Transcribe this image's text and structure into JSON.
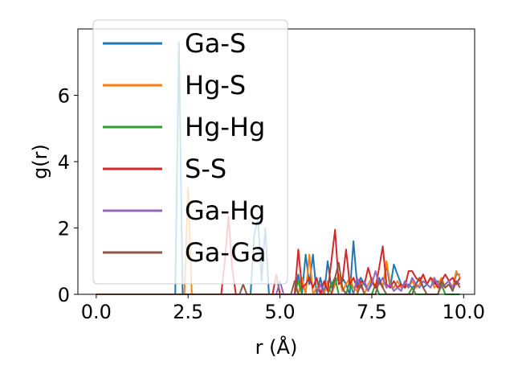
{
  "chart_data": {
    "type": "line",
    "title": "",
    "xlabel": "r (Å)",
    "ylabel": "g(r)",
    "xlim": [
      -0.5,
      10.3
    ],
    "ylim": [
      0,
      8.0
    ],
    "xticks": [
      0.0,
      2.5,
      5.0,
      7.5,
      10.0
    ],
    "xtick_labels": [
      "0.0",
      "2.5",
      "5.0",
      "7.5",
      "10.0"
    ],
    "yticks": [
      0,
      2,
      4,
      6
    ],
    "ytick_labels": [
      "0",
      "2",
      "4",
      "6"
    ],
    "grid": false,
    "legend_position": "upper-left",
    "series": [
      {
        "name": "Ga-S",
        "color": "#1f77b4",
        "points": [
          [
            0,
            0
          ],
          [
            2.15,
            0
          ],
          [
            2.25,
            7.6
          ],
          [
            2.35,
            0
          ],
          [
            4.2,
            0
          ],
          [
            4.3,
            1.8
          ],
          [
            4.4,
            2.3
          ],
          [
            4.5,
            0.4
          ],
          [
            4.6,
            2.0
          ],
          [
            4.7,
            0
          ],
          [
            5.4,
            0
          ],
          [
            5.5,
            0.6
          ],
          [
            5.6,
            0
          ],
          [
            5.7,
            1.2
          ],
          [
            5.8,
            0.3
          ],
          [
            5.9,
            1.2
          ],
          [
            6.0,
            0
          ],
          [
            6.1,
            0.5
          ],
          [
            6.2,
            0
          ],
          [
            6.3,
            1.0
          ],
          [
            6.4,
            0.2
          ],
          [
            6.5,
            0.5
          ],
          [
            6.6,
            0.4
          ],
          [
            6.7,
            0.5
          ],
          [
            6.8,
            0.3
          ],
          [
            6.9,
            0
          ],
          [
            7.0,
            1.6
          ],
          [
            7.1,
            0.3
          ],
          [
            7.2,
            0.5
          ],
          [
            7.3,
            0.3
          ],
          [
            7.4,
            0.1
          ],
          [
            7.5,
            0.4
          ],
          [
            7.6,
            0.2
          ],
          [
            7.7,
            0.5
          ],
          [
            7.8,
            0.2
          ],
          [
            7.9,
            0.9
          ],
          [
            8.0,
            0.2
          ],
          [
            8.1,
            0.9
          ],
          [
            8.2,
            0.6
          ],
          [
            8.3,
            0.3
          ],
          [
            8.4,
            0.2
          ],
          [
            8.5,
            0.3
          ],
          [
            8.6,
            0.2
          ],
          [
            8.7,
            0.3
          ],
          [
            8.8,
            0.5
          ],
          [
            8.9,
            0.2
          ],
          [
            9.0,
            0.3
          ],
          [
            9.1,
            0.5
          ],
          [
            9.2,
            0.3
          ],
          [
            9.3,
            0.4
          ],
          [
            9.4,
            0.2
          ],
          [
            9.5,
            0.3
          ],
          [
            9.6,
            0.4
          ],
          [
            9.7,
            0.2
          ],
          [
            9.8,
            0.6
          ],
          [
            9.9,
            0.6
          ]
        ]
      },
      {
        "name": "Hg-S",
        "color": "#ff7f0e",
        "points": [
          [
            0,
            0
          ],
          [
            2.4,
            0
          ],
          [
            2.5,
            3.2
          ],
          [
            2.6,
            0
          ],
          [
            5.5,
            0
          ],
          [
            5.6,
            0.5
          ],
          [
            5.7,
            0
          ],
          [
            5.8,
            1.2
          ],
          [
            5.9,
            0
          ],
          [
            6.0,
            0.2
          ],
          [
            6.2,
            0
          ],
          [
            6.3,
            0.4
          ],
          [
            6.4,
            0
          ],
          [
            6.6,
            0.6
          ],
          [
            6.7,
            0.1
          ],
          [
            6.8,
            0.3
          ],
          [
            6.9,
            0.5
          ],
          [
            7.0,
            0.2
          ],
          [
            7.1,
            0.1
          ],
          [
            7.2,
            0.4
          ],
          [
            7.3,
            0
          ],
          [
            7.4,
            0.3
          ],
          [
            7.5,
            0.5
          ],
          [
            7.6,
            0.2
          ],
          [
            7.7,
            0.4
          ],
          [
            7.8,
            0.2
          ],
          [
            7.9,
            1.0
          ],
          [
            8.0,
            0.3
          ],
          [
            8.1,
            0.2
          ],
          [
            8.2,
            0.4
          ],
          [
            8.3,
            0.2
          ],
          [
            8.4,
            0.3
          ],
          [
            8.5,
            0.2
          ],
          [
            8.6,
            0.4
          ],
          [
            8.7,
            0.2
          ],
          [
            8.8,
            0.3
          ],
          [
            8.9,
            0.6
          ],
          [
            9.0,
            0.3
          ],
          [
            9.1,
            0.5
          ],
          [
            9.2,
            0.2
          ],
          [
            9.3,
            0.3
          ],
          [
            9.4,
            0.5
          ],
          [
            9.5,
            0.2
          ],
          [
            9.6,
            0.3
          ],
          [
            9.7,
            0.2
          ],
          [
            9.8,
            0.7
          ],
          [
            9.9,
            0.5
          ]
        ]
      },
      {
        "name": "Hg-Hg",
        "color": "#2ca02c",
        "points": [
          [
            0,
            0
          ],
          [
            5.4,
            0
          ],
          [
            5.5,
            0.4
          ],
          [
            5.6,
            0
          ],
          [
            6.3,
            0
          ],
          [
            6.4,
            0.3
          ],
          [
            6.5,
            0.5
          ],
          [
            6.6,
            0
          ],
          [
            6.8,
            0
          ],
          [
            6.9,
            0.4
          ],
          [
            7.0,
            0
          ],
          [
            7.5,
            0
          ],
          [
            7.6,
            0.3
          ],
          [
            7.7,
            0
          ],
          [
            8.5,
            0
          ],
          [
            8.6,
            0.2
          ],
          [
            8.7,
            0
          ],
          [
            9.3,
            0
          ],
          [
            9.4,
            0.3
          ],
          [
            9.5,
            0
          ],
          [
            9.9,
            0
          ]
        ]
      },
      {
        "name": "S-S",
        "color": "#d62728",
        "points": [
          [
            0,
            0
          ],
          [
            3.4,
            0
          ],
          [
            3.5,
            1.0
          ],
          [
            3.6,
            2.35
          ],
          [
            3.7,
            0.8
          ],
          [
            3.8,
            0
          ],
          [
            4.8,
            0
          ],
          [
            4.9,
            0.6
          ],
          [
            5.0,
            0
          ],
          [
            5.4,
            0
          ],
          [
            5.5,
            1.35
          ],
          [
            5.6,
            0.2
          ],
          [
            5.7,
            0.3
          ],
          [
            5.8,
            0.5
          ],
          [
            5.9,
            0.2
          ],
          [
            6.0,
            0.5
          ],
          [
            6.1,
            0
          ],
          [
            6.2,
            0.4
          ],
          [
            6.3,
            0.1
          ],
          [
            6.4,
            1.0
          ],
          [
            6.5,
            1.95
          ],
          [
            6.6,
            0.3
          ],
          [
            6.7,
            0.4
          ],
          [
            6.8,
            1.35
          ],
          [
            6.9,
            0.3
          ],
          [
            7.0,
            0.5
          ],
          [
            7.1,
            0.2
          ],
          [
            7.2,
            0.4
          ],
          [
            7.3,
            0.3
          ],
          [
            7.4,
            0.8
          ],
          [
            7.5,
            0.4
          ],
          [
            7.6,
            0.2
          ],
          [
            7.7,
            0.8
          ],
          [
            7.8,
            1.45
          ],
          [
            7.9,
            0.3
          ],
          [
            8.0,
            0.2
          ],
          [
            8.1,
            0.4
          ],
          [
            8.2,
            0.2
          ],
          [
            8.3,
            0.3
          ],
          [
            8.4,
            0.2
          ],
          [
            8.5,
            0.7
          ],
          [
            8.6,
            0.7
          ],
          [
            8.7,
            0.5
          ],
          [
            8.8,
            0.4
          ],
          [
            8.9,
            0.6
          ],
          [
            9.0,
            0.3
          ],
          [
            9.1,
            0.5
          ],
          [
            9.2,
            0.4
          ],
          [
            9.3,
            0.2
          ],
          [
            9.4,
            0.4
          ],
          [
            9.5,
            0.6
          ],
          [
            9.6,
            0.4
          ],
          [
            9.7,
            0.5
          ],
          [
            9.8,
            0.3
          ],
          [
            9.9,
            0.5
          ]
        ]
      },
      {
        "name": "Ga-Hg",
        "color": "#9467bd",
        "points": [
          [
            0,
            0
          ],
          [
            4.9,
            0
          ],
          [
            5.0,
            0.4
          ],
          [
            5.1,
            0
          ],
          [
            6.0,
            0
          ],
          [
            6.1,
            0.3
          ],
          [
            6.2,
            0
          ],
          [
            7.0,
            0
          ],
          [
            7.1,
            0.5
          ],
          [
            7.2,
            0.2
          ],
          [
            7.3,
            0.4
          ],
          [
            7.4,
            0.1
          ],
          [
            7.5,
            0.3
          ],
          [
            7.6,
            0.7
          ],
          [
            7.7,
            0.3
          ],
          [
            7.8,
            0.5
          ],
          [
            7.9,
            0.2
          ],
          [
            8.0,
            0.3
          ],
          [
            8.1,
            0.1
          ],
          [
            8.2,
            0.2
          ],
          [
            8.3,
            0.1
          ],
          [
            8.4,
            0.4
          ],
          [
            8.5,
            0.2
          ],
          [
            8.6,
            0.5
          ],
          [
            8.7,
            0.3
          ],
          [
            8.8,
            0.2
          ],
          [
            8.9,
            0.4
          ],
          [
            9.0,
            0.3
          ],
          [
            9.1,
            0.2
          ],
          [
            9.2,
            0.5
          ],
          [
            9.3,
            0.3
          ],
          [
            9.4,
            0.2
          ],
          [
            9.5,
            0.3
          ],
          [
            9.6,
            0.4
          ],
          [
            9.7,
            0.2
          ],
          [
            9.8,
            0.4
          ],
          [
            9.9,
            0.3
          ]
        ]
      },
      {
        "name": "Ga-Ga",
        "color": "#8c564b",
        "points": [
          [
            0,
            0
          ],
          [
            3.9,
            0
          ],
          [
            4.0,
            0.3
          ],
          [
            4.1,
            0
          ],
          [
            5.3,
            0
          ],
          [
            5.4,
            0.4
          ],
          [
            5.5,
            0
          ],
          [
            6.4,
            0
          ],
          [
            6.5,
            0.5
          ],
          [
            6.6,
            0.95
          ],
          [
            6.7,
            0.2
          ],
          [
            6.8,
            0
          ],
          [
            7.1,
            0
          ],
          [
            7.2,
            0.3
          ],
          [
            7.3,
            0
          ],
          [
            7.6,
            0
          ],
          [
            7.7,
            0.4
          ],
          [
            7.8,
            0.2
          ],
          [
            7.9,
            0
          ],
          [
            8.6,
            0
          ],
          [
            8.7,
            0.3
          ],
          [
            8.8,
            0.5
          ],
          [
            8.9,
            0.2
          ],
          [
            9.0,
            0
          ],
          [
            9.3,
            0
          ],
          [
            9.4,
            0.4
          ],
          [
            9.5,
            0.2
          ],
          [
            9.6,
            0.3
          ],
          [
            9.7,
            0.1
          ],
          [
            9.8,
            0.4
          ],
          [
            9.9,
            0.2
          ]
        ]
      }
    ]
  }
}
